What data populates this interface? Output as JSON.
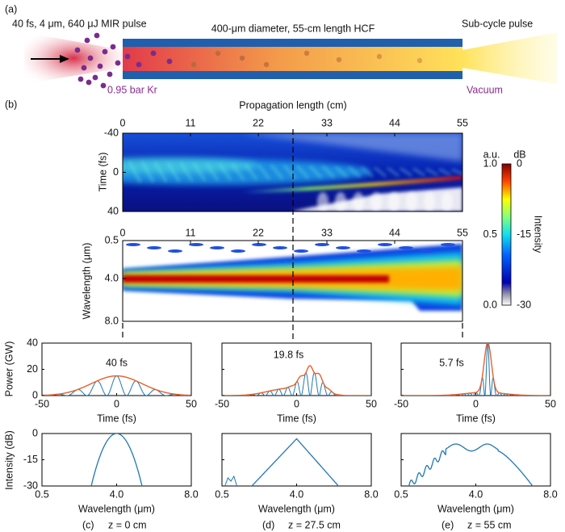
{
  "panel_labels": [
    "(a)",
    "(b)"
  ],
  "schematic": {
    "input": "40 fs, 4 μm, 640 μJ MIR pulse",
    "fiber": "400-μm diameter, 55-cm length HCF",
    "output": "Sub-cycle pulse",
    "gas": "0.95 bar Kr",
    "vacuum": "Vacuum"
  },
  "maps": {
    "x_label": "Propagation length (cm)",
    "x_ticks": [
      "0",
      "11",
      "22",
      "33",
      "44",
      "55"
    ],
    "time_label": "Time (fs)",
    "time_ticks": [
      "-40",
      "0",
      "40"
    ],
    "wavelength_label": "Wavelength (μm)",
    "wavelength_ticks": [
      "0.5",
      "4.0",
      "8.0"
    ]
  },
  "colorbar": {
    "units_linear": "a.u.",
    "units_db": "dB",
    "linear_ticks": [
      "1.0",
      "0.5",
      "0.0"
    ],
    "db_ticks": [
      "0",
      "-15",
      "-30"
    ],
    "label": "Intensity"
  },
  "temporal": {
    "y_label": "Power (GW)",
    "y_ticks": [
      "40",
      "20",
      "0"
    ],
    "x_label": "Time (fs)",
    "x_ticks": [
      "-50",
      "0",
      "50"
    ]
  },
  "spectral": {
    "y_label": "Intensity (dB)",
    "y_ticks": [
      "0",
      "-15",
      "-30"
    ],
    "x_label": "Wavelength (μm)",
    "x_ticks": [
      "0.5",
      "4.0",
      "8.0"
    ]
  },
  "columns": [
    {
      "panel": "(c)",
      "position": "z = 0 cm",
      "duration": "40 fs"
    },
    {
      "panel": "(d)",
      "position": "z = 27.5 cm",
      "duration": "19.8 fs"
    },
    {
      "panel": "(e)",
      "position": "z = 55 cm",
      "duration": "5.7 fs"
    }
  ]
}
